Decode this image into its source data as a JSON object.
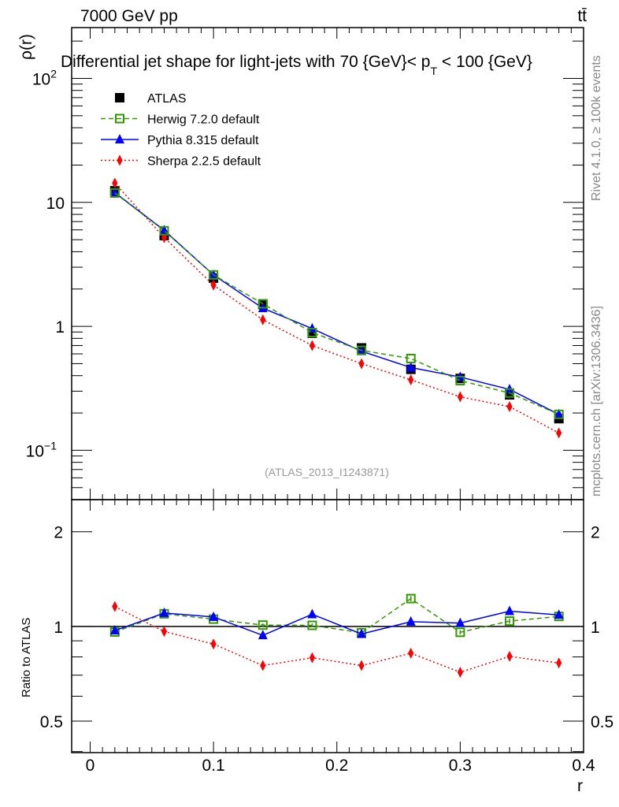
{
  "header": {
    "energy_label": "7000 GeV pp",
    "process_label": "tt̄",
    "title_main": "Differential jet shape for light-jets with 70 {GeV}< p",
    "title_sub": "T",
    "title_end": " < 100 {GeV}",
    "side_rivet": "Rivet 4.1.0, ≥ 100k events",
    "side_mcplots": "mcplots.cern.ch [arXiv:1306.3436]",
    "watermark": "(ATLAS_2013_I1243871)"
  },
  "chart_data": [
    {
      "type": "scatter",
      "panel": "main",
      "ylabel": "ρ(r)",
      "yscale": "log",
      "ylim": [
        0.04,
        257
      ],
      "xlim": [
        -0.015,
        0.4
      ],
      "y_ticks": [
        {
          "value": 0.1,
          "base": "10",
          "exp": "−1"
        },
        {
          "value": 1,
          "base": "1",
          "exp": ""
        },
        {
          "value": 10,
          "base": "10",
          "exp": ""
        },
        {
          "value": 100,
          "base": "10",
          "exp": "2"
        }
      ],
      "x": [
        0.02,
        0.06,
        0.1,
        0.14,
        0.18,
        0.22,
        0.26,
        0.3,
        0.34,
        0.38
      ],
      "series": [
        {
          "name": "ATLAS",
          "color": "#000000",
          "marker": "square",
          "line": "none",
          "values": [
            12.4,
            5.4,
            2.45,
            1.5,
            0.88,
            0.67,
            0.45,
            0.38,
            0.28,
            0.18
          ]
        },
        {
          "name": "Herwig 7.2.0 default",
          "color": "#339900",
          "marker": "open-square",
          "line": "dashed",
          "values": [
            11.9,
            5.9,
            2.6,
            1.52,
            0.89,
            0.64,
            0.55,
            0.365,
            0.29,
            0.195
          ]
        },
        {
          "name": "Pythia 8.315 default",
          "color": "#0000ff",
          "marker": "triangle",
          "line": "solid",
          "values": [
            12.0,
            5.95,
            2.6,
            1.4,
            0.96,
            0.63,
            0.465,
            0.39,
            0.31,
            0.195
          ]
        },
        {
          "name": "Sherpa 2.2.5 default",
          "color": "#ff0000",
          "marker": "diamond",
          "line": "dotted",
          "values": [
            14.3,
            5.2,
            2.15,
            1.13,
            0.7,
            0.5,
            0.37,
            0.27,
            0.225,
            0.138
          ]
        }
      ]
    },
    {
      "type": "scatter",
      "panel": "ratio",
      "ylabel": "Ratio to ATLAS",
      "xlabel": "r",
      "yscale": "log",
      "ylim": [
        0.397,
        2.53
      ],
      "xlim": [
        -0.015,
        0.4
      ],
      "y_ticks": [
        {
          "value": 0.5,
          "label": "0.5"
        },
        {
          "value": 1,
          "label": "1"
        },
        {
          "value": 2,
          "label": "2"
        }
      ],
      "x_ticks": [
        {
          "value": 0,
          "label": "0"
        },
        {
          "value": 0.1,
          "label": "0.1"
        },
        {
          "value": 0.2,
          "label": "0.2"
        },
        {
          "value": 0.3,
          "label": "0.3"
        },
        {
          "value": 0.4,
          "label": "0.4"
        }
      ],
      "x": [
        0.02,
        0.06,
        0.1,
        0.14,
        0.18,
        0.22,
        0.26,
        0.3,
        0.34,
        0.38
      ],
      "series": [
        {
          "name": "Herwig 7.2.0 default",
          "color": "#339900",
          "marker": "open-square",
          "line": "dashed",
          "values": [
            0.96,
            1.097,
            1.055,
            1.01,
            1.008,
            0.955,
            1.226,
            0.958,
            1.04,
            1.076
          ],
          "errors": [
            0.01,
            0.015,
            0.012,
            0.012,
            0.015,
            0.012,
            0.025,
            0.015,
            0.02,
            0.02
          ]
        },
        {
          "name": "Pythia 8.315 default",
          "color": "#0000ff",
          "marker": "triangle",
          "line": "solid",
          "values": [
            0.97,
            1.103,
            1.072,
            0.937,
            1.093,
            0.946,
            1.035,
            1.025,
            1.118,
            1.088
          ],
          "errors": [
            0.01,
            0.015,
            0.015,
            0.015,
            0.025,
            0.02,
            0.025,
            0.025,
            0.025,
            0.025
          ]
        },
        {
          "name": "Sherpa 2.2.5 default",
          "color": "#ff0000",
          "marker": "diamond",
          "line": "dotted",
          "values": [
            1.157,
            0.964,
            0.879,
            0.751,
            0.795,
            0.751,
            0.822,
            0.715,
            0.803,
            0.765
          ],
          "errors": [
            0.01,
            0.01,
            0.01,
            0.01,
            0.01,
            0.01,
            0.01,
            0.01,
            0.01,
            0.01
          ]
        }
      ]
    }
  ]
}
